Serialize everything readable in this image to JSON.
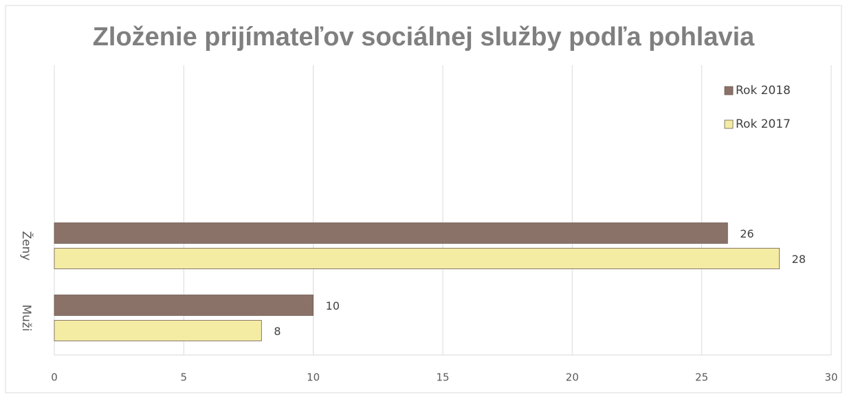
{
  "chart_data": {
    "type": "bar",
    "orientation": "horizontal",
    "title": "Zloženie prijímateľov sociálnej služby podľa pohlavia",
    "categories": [
      "Muži",
      "Ženy"
    ],
    "series": [
      {
        "name": "Rok 2018",
        "color": "#8b7268",
        "values": [
          10,
          26
        ]
      },
      {
        "name": "Rok 2017",
        "color": "#f5eca4",
        "values": [
          8,
          28
        ]
      }
    ],
    "xlim": [
      0,
      30
    ],
    "xticks": [
      0,
      5,
      10,
      15,
      20,
      25,
      30
    ],
    "grid": true,
    "legend": "top-right"
  }
}
